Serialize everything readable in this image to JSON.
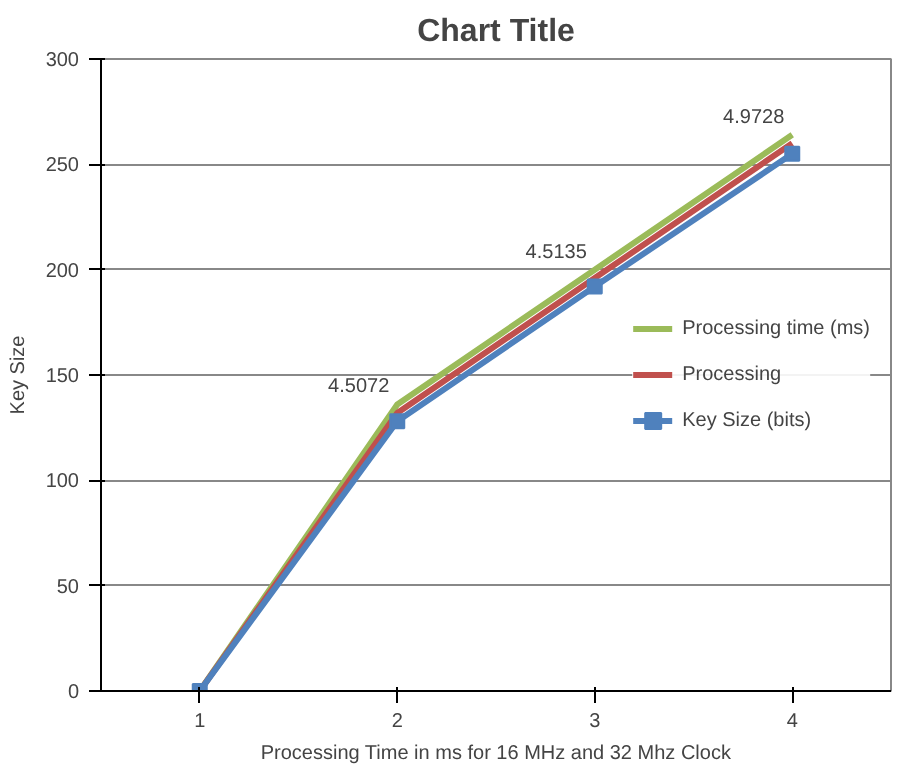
{
  "chart_data": {
    "type": "line",
    "title": "Chart Title",
    "xlabel": "Processing Time in ms for 16 MHz and 32 Mhz Clock",
    "ylabel": "Key Size",
    "categories": [
      "1",
      "2",
      "3",
      "4"
    ],
    "series": [
      {
        "name": "Processing time (ms)",
        "color": "#9bbb59",
        "values": [
          0,
          136,
          200,
          264
        ],
        "marker": "none"
      },
      {
        "name": "Processing",
        "color": "#c0504d",
        "values": [
          0,
          132,
          196,
          260
        ],
        "marker": "none"
      },
      {
        "name": "Key Size (bits)",
        "color": "#4f81bd",
        "values": [
          0,
          128,
          192,
          255
        ],
        "marker": "square"
      }
    ],
    "ylim": [
      0,
      300
    ],
    "yticks": [
      0,
      50,
      100,
      150,
      200,
      250,
      300
    ],
    "grid": "y",
    "legend": "right",
    "annotations": [
      {
        "text": "4.5072",
        "x": "2",
        "y": 136
      },
      {
        "text": "4.5135",
        "x": "3",
        "y": 200
      },
      {
        "text": "4.9728",
        "x": "4",
        "y": 264
      }
    ]
  }
}
